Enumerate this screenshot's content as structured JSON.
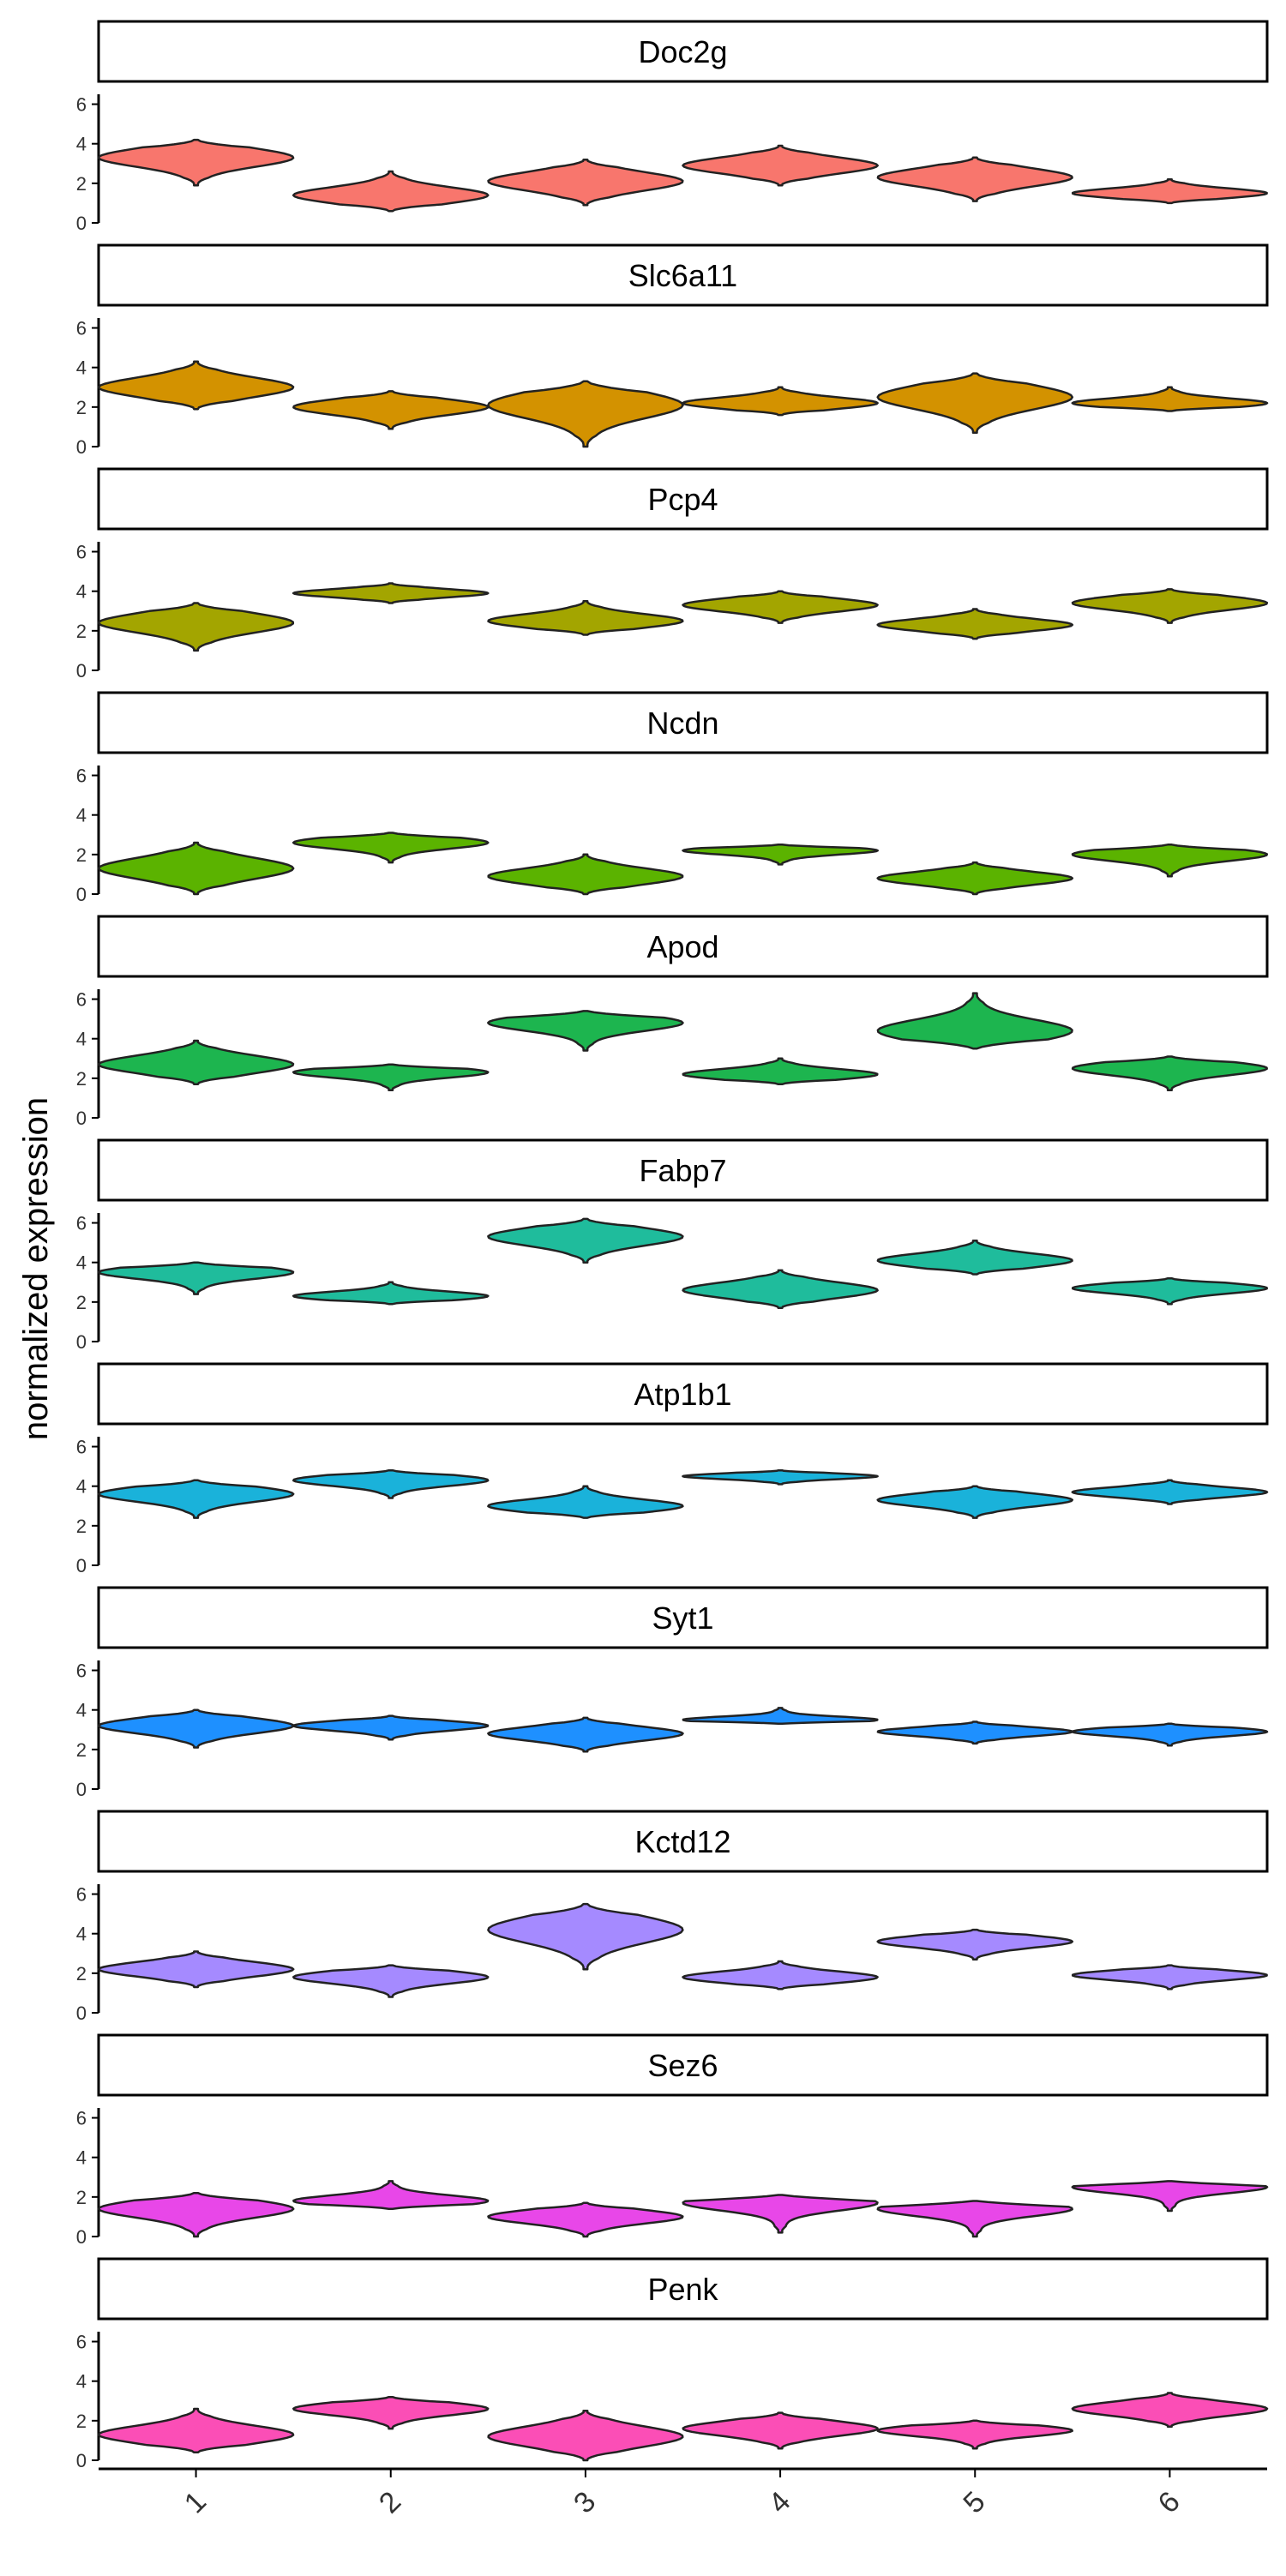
{
  "chart_data": {
    "type": "violin",
    "ylabel": "normalized expression",
    "categories": [
      "1",
      "2",
      "3",
      "4",
      "5",
      "6"
    ],
    "yticks": [
      0,
      2,
      4,
      6
    ],
    "ylim": [
      0,
      6.5
    ],
    "panels": [
      {
        "gene": "Doc2g",
        "color": "#F8766D",
        "violins": [
          {
            "min": 1.9,
            "max": 4.2,
            "mode": 3.3
          },
          {
            "min": 0.6,
            "max": 2.6,
            "mode": 1.4
          },
          {
            "min": 0.9,
            "max": 3.2,
            "mode": 2.1
          },
          {
            "min": 1.9,
            "max": 3.9,
            "mode": 2.9
          },
          {
            "min": 1.1,
            "max": 3.3,
            "mode": 2.3
          },
          {
            "min": 1.0,
            "max": 2.2,
            "mode": 1.5
          }
        ]
      },
      {
        "gene": "Slc6a11",
        "color": "#D39200",
        "violins": [
          {
            "min": 1.9,
            "max": 4.3,
            "mode": 3.0
          },
          {
            "min": 0.9,
            "max": 2.8,
            "mode": 2.0
          },
          {
            "min": 0.0,
            "max": 3.3,
            "mode": 2.1
          },
          {
            "min": 1.6,
            "max": 3.0,
            "mode": 2.2
          },
          {
            "min": 0.7,
            "max": 3.7,
            "mode": 2.5
          },
          {
            "min": 1.8,
            "max": 3.0,
            "mode": 2.2
          }
        ]
      },
      {
        "gene": "Pcp4",
        "color": "#A3A500",
        "violins": [
          {
            "min": 1.0,
            "max": 3.4,
            "mode": 2.4
          },
          {
            "min": 3.4,
            "max": 4.4,
            "mode": 3.9
          },
          {
            "min": 1.8,
            "max": 3.5,
            "mode": 2.5
          },
          {
            "min": 2.4,
            "max": 4.0,
            "mode": 3.3
          },
          {
            "min": 1.6,
            "max": 3.1,
            "mode": 2.3
          },
          {
            "min": 2.4,
            "max": 4.1,
            "mode": 3.4
          }
        ]
      },
      {
        "gene": "Ncdn",
        "color": "#5BB300",
        "violins": [
          {
            "min": 0.0,
            "max": 2.6,
            "mode": 1.3
          },
          {
            "min": 1.6,
            "max": 3.1,
            "mode": 2.6
          },
          {
            "min": 0.0,
            "max": 2.0,
            "mode": 0.9
          },
          {
            "min": 1.5,
            "max": 2.5,
            "mode": 2.2
          },
          {
            "min": 0.0,
            "max": 1.6,
            "mode": 0.8
          },
          {
            "min": 0.9,
            "max": 2.5,
            "mode": 2.0
          }
        ]
      },
      {
        "gene": "Apod",
        "color": "#1DB54F",
        "violins": [
          {
            "min": 1.7,
            "max": 3.9,
            "mode": 2.7
          },
          {
            "min": 1.4,
            "max": 2.7,
            "mode": 2.3
          },
          {
            "min": 3.4,
            "max": 5.4,
            "mode": 4.8
          },
          {
            "min": 1.7,
            "max": 3.0,
            "mode": 2.2
          },
          {
            "min": 3.5,
            "max": 6.3,
            "mode": 4.4
          },
          {
            "min": 1.4,
            "max": 3.1,
            "mode": 2.5
          }
        ]
      },
      {
        "gene": "Fabp7",
        "color": "#1FBC9C",
        "violins": [
          {
            "min": 2.4,
            "max": 4.0,
            "mode": 3.5
          },
          {
            "min": 1.9,
            "max": 3.0,
            "mode": 2.3
          },
          {
            "min": 4.0,
            "max": 6.2,
            "mode": 5.3
          },
          {
            "min": 1.7,
            "max": 3.6,
            "mode": 2.6
          },
          {
            "min": 3.4,
            "max": 5.1,
            "mode": 4.1
          },
          {
            "min": 1.9,
            "max": 3.2,
            "mode": 2.7
          }
        ]
      },
      {
        "gene": "Atp1b1",
        "color": "#1AB2DA",
        "violins": [
          {
            "min": 2.4,
            "max": 4.3,
            "mode": 3.6
          },
          {
            "min": 3.4,
            "max": 4.8,
            "mode": 4.3
          },
          {
            "min": 2.4,
            "max": 4.0,
            "mode": 3.0
          },
          {
            "min": 4.1,
            "max": 4.8,
            "mode": 4.5
          },
          {
            "min": 2.4,
            "max": 4.0,
            "mode": 3.3
          },
          {
            "min": 3.1,
            "max": 4.3,
            "mode": 3.7
          }
        ]
      },
      {
        "gene": "Syt1",
        "color": "#1E90FF",
        "violins": [
          {
            "min": 2.1,
            "max": 4.0,
            "mode": 3.2
          },
          {
            "min": 2.5,
            "max": 3.7,
            "mode": 3.2
          },
          {
            "min": 1.9,
            "max": 3.6,
            "mode": 2.8
          },
          {
            "min": 3.3,
            "max": 4.1,
            "mode": 3.5
          },
          {
            "min": 2.3,
            "max": 3.4,
            "mode": 2.9
          },
          {
            "min": 2.2,
            "max": 3.3,
            "mode": 2.9
          }
        ]
      },
      {
        "gene": "Kctd12",
        "color": "#A58AFF",
        "violins": [
          {
            "min": 1.3,
            "max": 3.1,
            "mode": 2.2
          },
          {
            "min": 0.8,
            "max": 2.4,
            "mode": 1.8
          },
          {
            "min": 2.2,
            "max": 5.5,
            "mode": 4.2
          },
          {
            "min": 1.2,
            "max": 2.6,
            "mode": 1.8
          },
          {
            "min": 2.7,
            "max": 4.2,
            "mode": 3.6
          },
          {
            "min": 1.2,
            "max": 2.4,
            "mode": 1.9
          }
        ]
      },
      {
        "gene": "Sez6",
        "color": "#E847E8",
        "violins": [
          {
            "min": 0.0,
            "max": 2.2,
            "mode": 1.4
          },
          {
            "min": 1.4,
            "max": 2.8,
            "mode": 1.8
          },
          {
            "min": 0.0,
            "max": 1.7,
            "mode": 1.0
          },
          {
            "min": 0.2,
            "max": 2.1,
            "mode": 1.7
          },
          {
            "min": 0.0,
            "max": 1.8,
            "mode": 1.4
          },
          {
            "min": 1.3,
            "max": 2.8,
            "mode": 2.5
          }
        ]
      },
      {
        "gene": "Penk",
        "color": "#FB4EB6",
        "violins": [
          {
            "min": 0.4,
            "max": 2.6,
            "mode": 1.3
          },
          {
            "min": 1.6,
            "max": 3.2,
            "mode": 2.6
          },
          {
            "min": 0.0,
            "max": 2.5,
            "mode": 1.2
          },
          {
            "min": 0.6,
            "max": 2.4,
            "mode": 1.6
          },
          {
            "min": 0.6,
            "max": 2.0,
            "mode": 1.5
          },
          {
            "min": 1.7,
            "max": 3.4,
            "mode": 2.6
          }
        ]
      }
    ]
  }
}
